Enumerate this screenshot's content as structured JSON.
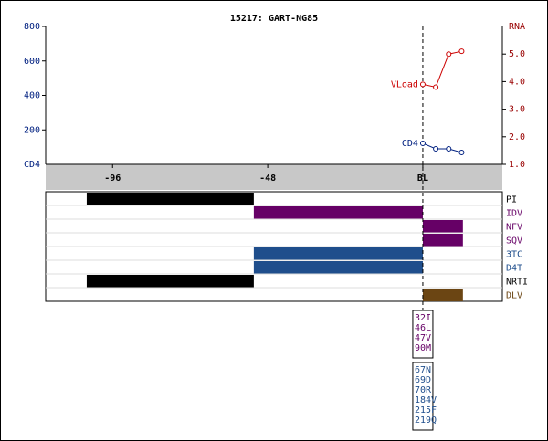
{
  "chart_data": {
    "type": "line",
    "title": "15217: GART-NG85",
    "ylabel": "CD4",
    "y2label": "RNA",
    "xlim": [
      -116.7,
      24.6
    ],
    "xticks": [
      -96,
      -48,
      {
        "value": 0,
        "label": "BL"
      }
    ],
    "ylim": [
      0,
      800
    ],
    "yticks": [
      200,
      400,
      600,
      800
    ],
    "y2lim": [
      1.0,
      6.0
    ],
    "y2ticks": [
      {
        "value": 1,
        "label": "1.0"
      },
      {
        "value": 2,
        "label": "2.0"
      },
      {
        "value": 3,
        "label": "3.0"
      },
      {
        "value": 4,
        "label": "4.0"
      },
      {
        "value": 5,
        "label": "5.0"
      }
    ],
    "series": [
      {
        "name": "VLoad",
        "color": "#cc0000",
        "axis": "y2",
        "x": [
          0,
          4,
          8,
          12
        ],
        "values": [
          3.9,
          3.8,
          5.0,
          5.1
        ]
      },
      {
        "name": "CD4",
        "color": "#002080",
        "x": [
          0,
          4,
          8,
          12
        ],
        "values": [
          122,
          90,
          90,
          69
        ]
      }
    ],
    "treatments": [
      {
        "name": "PI",
        "color": "#000000",
        "start": -104,
        "end": -52.3
      },
      {
        "name": "IDV",
        "color": "#660066",
        "start": -52.3,
        "end": 0
      },
      {
        "name": "NFV",
        "color": "#660066",
        "start": 0,
        "end": 12.4
      },
      {
        "name": "SQV",
        "color": "#660066",
        "start": 0,
        "end": 12.4
      },
      {
        "name": "3TC",
        "color": "#1f4e8c",
        "start": -52.3,
        "end": 0
      },
      {
        "name": "D4T",
        "color": "#1f4e8c",
        "start": -52.3,
        "end": 0
      },
      {
        "name": "NRTI",
        "color": "#000000",
        "start": -104,
        "end": -52.3
      },
      {
        "name": "DLV",
        "color": "#6b4513",
        "start": 0,
        "end": 12.4
      }
    ],
    "mutations": [
      {
        "color": "#660066",
        "labels": [
          "32I",
          "46L",
          "47V",
          "90M"
        ]
      },
      {
        "color": "#1f4e8c",
        "labels": [
          "67N",
          "69D",
          "70R",
          "184V",
          "215F",
          "219Q"
        ]
      }
    ]
  }
}
